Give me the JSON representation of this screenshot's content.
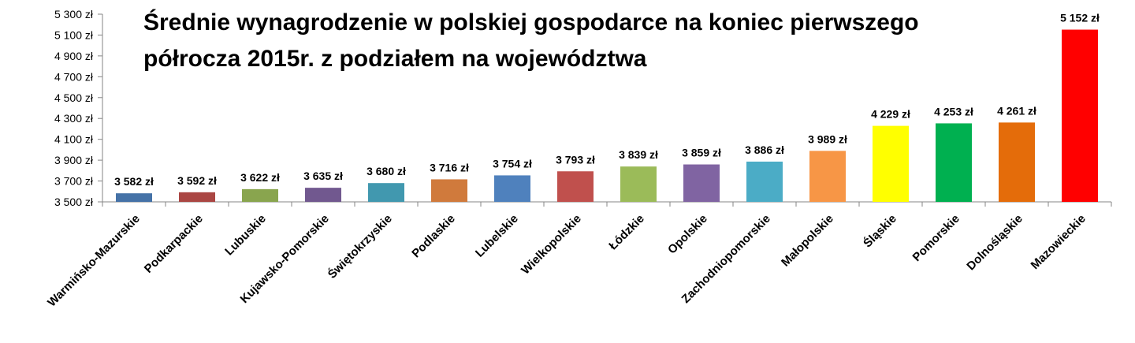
{
  "chart_data": {
    "type": "bar",
    "title_line1": "Średnie wynagrodzenie w polskiej gospodarce na koniec pierwszego",
    "title_line2": "półrocza 2015r. z podziałem na województwa",
    "xlabel": "",
    "ylabel": "",
    "ylim": [
      3500,
      5300
    ],
    "yticks": [
      3500,
      3700,
      3900,
      4100,
      4300,
      4500,
      4700,
      4900,
      5100,
      5300
    ],
    "ytick_labels": [
      "3 500 zł",
      "3 700 zł",
      "3 900 zł",
      "4 100 zł",
      "4 300 zł",
      "4 500 zł",
      "4 700 zł",
      "4 900 zł",
      "5 100 zł",
      "5 300 zł"
    ],
    "grid": false,
    "legend": "none",
    "categories": [
      "Warmińsko-Mazurskie",
      "Podkarpackie",
      "Lubuskie",
      "Kujawsko-Pomorskie",
      "Świętokrzyskie",
      "Podlaskie",
      "Lubelskie",
      "Wielkopolskie",
      "Łódzkie",
      "Opolskie",
      "Zachodniopomorskie",
      "Małopolskie",
      "Śląskie",
      "Pomorskie",
      "Dolnośląskie",
      "Mazowieckie"
    ],
    "values": [
      3582,
      3592,
      3622,
      3635,
      3680,
      3716,
      3754,
      3793,
      3839,
      3859,
      3886,
      3989,
      4229,
      4253,
      4261,
      5152
    ],
    "value_labels": [
      "3 582 zł",
      "3 592 zł",
      "3 622 zł",
      "3 635 zł",
      "3 680 zł",
      "3 716 zł",
      "3 754 zł",
      "3 793 zł",
      "3 839 zł",
      "3 859 zł",
      "3 886 zł",
      "3 989 zł",
      "4 229 zł",
      "4 253 zł",
      "4 261 zł",
      "5 152 zł"
    ],
    "colors": [
      "#4572A7",
      "#AA4643",
      "#89A54E",
      "#71588F",
      "#4198AF",
      "#D07A3C",
      "#4F81BD",
      "#C0504D",
      "#9BBB59",
      "#8064A2",
      "#4BACC6",
      "#F79646",
      "#FFFF00",
      "#00B050",
      "#E46C0A",
      "#FF0000"
    ]
  }
}
